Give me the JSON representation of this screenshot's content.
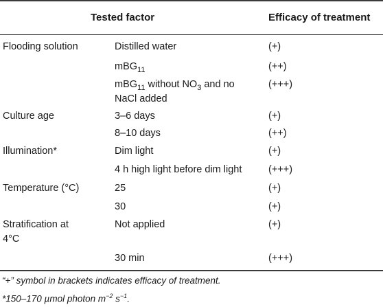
{
  "headers": {
    "tested_factor": "Tested factor",
    "efficacy": "Efficacy of treatment"
  },
  "rows": [
    {
      "factor": "Flooding solution",
      "level_main": "Distilled water",
      "level_sub": "",
      "level_rest": "",
      "level_line2": "",
      "efficacy": "(+)"
    },
    {
      "factor": "",
      "level_main": "mBG",
      "level_sub": "11",
      "level_rest": "",
      "level_line2": "",
      "efficacy": "(++)"
    },
    {
      "factor": "",
      "level_main": "mBG",
      "level_sub": "11",
      "level_rest": " without NO",
      "level_sub2": "3",
      "level_rest2": " and no",
      "level_line2": "NaCl added",
      "efficacy": "(+++)"
    },
    {
      "factor": "Culture age",
      "level_main": "3–6 days",
      "efficacy": "(+)"
    },
    {
      "factor": "",
      "level_main": "8–10 days",
      "efficacy": "(++)"
    },
    {
      "factor": "Illumination*",
      "level_main": "Dim light",
      "efficacy": "(+)"
    },
    {
      "factor": "",
      "level_main": "4 h high light before dim light",
      "efficacy": "(+++)"
    },
    {
      "factor": "Temperature (°C)",
      "level_main": "25",
      "efficacy": "(+)"
    },
    {
      "factor": "",
      "level_main": "30",
      "efficacy": "(+)"
    },
    {
      "factor": "Stratification at",
      "factor_line2": "4°C",
      "level_main": "Not applied",
      "efficacy": "(+)"
    },
    {
      "factor": "",
      "level_main": "30 min",
      "efficacy": "(+++)"
    }
  ],
  "notes": {
    "line1": "“+” symbol in brackets indicates efficacy of treatment.",
    "line2_prefix": "*150–170 µmol photon m",
    "line2_sup1": "−2",
    "line2_mid": " s",
    "line2_sup2": "−1",
    "line2_suffix": "."
  }
}
